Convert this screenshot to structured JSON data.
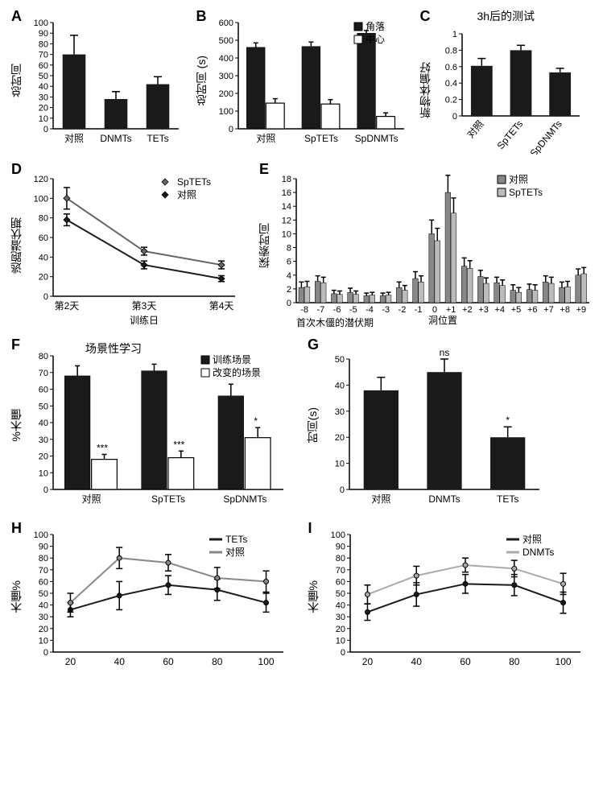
{
  "panelA": {
    "label": "A",
    "ylabel": "总时间",
    "type": "bar",
    "categories": [
      "对照",
      "DNMTs",
      "TETs"
    ],
    "values": [
      70,
      28,
      42
    ],
    "errors": [
      18,
      7,
      7
    ],
    "ylim": [
      0,
      100
    ],
    "yticks": [
      0,
      10,
      20,
      30,
      40,
      50,
      60,
      70,
      80,
      90,
      100
    ],
    "bar_color": "#1a1a1a",
    "bg": "#ffffff"
  },
  "panelB": {
    "label": "B",
    "ylabel": "总时间 (s)",
    "type": "grouped-bar",
    "categories": [
      "对照",
      "SpTETs",
      "SpDNMTs"
    ],
    "legend": [
      {
        "label": "角落",
        "fill": "#1a1a1a"
      },
      {
        "label": "中心",
        "fill": "#ffffff"
      }
    ],
    "series": [
      {
        "name": "角落",
        "values": [
          460,
          465,
          540
        ],
        "errors": [
          25,
          25,
          15
        ],
        "fill": "#1a1a1a"
      },
      {
        "name": "中心",
        "values": [
          145,
          140,
          70
        ],
        "errors": [
          25,
          25,
          20
        ],
        "fill": "#ffffff"
      }
    ],
    "ylim": [
      0,
      600
    ],
    "yticks": [
      0,
      100,
      200,
      300,
      400,
      500,
      600
    ],
    "bg": "#ffffff"
  },
  "panelC": {
    "label": "C",
    "title": "3h后的测试",
    "ylabel": "新物体偏好",
    "type": "bar",
    "categories": [
      "对照",
      "SpTETs",
      "SpDNMTs"
    ],
    "values": [
      0.61,
      0.8,
      0.53
    ],
    "errors": [
      0.09,
      0.06,
      0.05
    ],
    "ylim": [
      0,
      1.0
    ],
    "yticks": [
      0,
      0.2,
      0.4,
      0.6,
      0.8,
      1.0
    ],
    "bar_color": "#1a1a1a",
    "bg": "#ffffff"
  },
  "panelD": {
    "label": "D",
    "ylabel": "逃跑潜伏期",
    "xlabel": "训练日",
    "type": "line",
    "categories": [
      "第2天",
      "第3天",
      "第4天"
    ],
    "legend": [
      {
        "label": "SpTETs",
        "marker": "diamond",
        "color": "#666666"
      },
      {
        "label": "对照",
        "marker": "diamond",
        "color": "#1a1a1a"
      }
    ],
    "series": [
      {
        "name": "SpTETs",
        "values": [
          100,
          46,
          32
        ],
        "errors": [
          11,
          4,
          4
        ],
        "color": "#666666"
      },
      {
        "name": "对照",
        "values": [
          78,
          32,
          18
        ],
        "errors": [
          6,
          4,
          3
        ],
        "color": "#1a1a1a"
      }
    ],
    "ylim": [
      0,
      120
    ],
    "yticks": [
      0,
      20,
      40,
      60,
      80,
      100,
      120
    ],
    "bg": "#ffffff"
  },
  "panelE": {
    "label": "E",
    "ylabel": "探索时间",
    "xlabel": "洞位置",
    "legend_title": "首次木僵的潜伏期",
    "type": "grouped-bar",
    "categories": [
      "-8",
      "-7",
      "-6",
      "-5",
      "-4",
      "-3",
      "-2",
      "-1",
      "0",
      "+1",
      "+2",
      "+3",
      "+4",
      "+5",
      "+6",
      "+7",
      "+8",
      "+9"
    ],
    "legend": [
      {
        "label": "对照",
        "fill": "#888888"
      },
      {
        "label": "SpTETs",
        "fill": "#bbbbbb"
      }
    ],
    "series": [
      {
        "name": "对照",
        "values": [
          2.2,
          3.1,
          1.3,
          1.5,
          1.0,
          1.0,
          2.2,
          3.5,
          10.0,
          16.0,
          5.3,
          3.8,
          2.9,
          1.8,
          1.9,
          3.0,
          2.2,
          4.0
        ],
        "errors": [
          0.8,
          0.8,
          0.5,
          0.6,
          0.4,
          0.4,
          0.8,
          1.0,
          2.0,
          2.5,
          1.2,
          0.9,
          0.8,
          0.8,
          0.8,
          0.9,
          0.8,
          0.9
        ],
        "fill": "#888888"
      },
      {
        "name": "SpTETs",
        "values": [
          2.3,
          2.9,
          1.2,
          1.2,
          1.1,
          1.1,
          1.8,
          3.0,
          9.0,
          13.0,
          5.0,
          2.8,
          2.5,
          1.5,
          1.8,
          2.8,
          2.3,
          4.2
        ],
        "errors": [
          0.8,
          0.8,
          0.5,
          0.5,
          0.4,
          0.4,
          0.7,
          0.9,
          1.8,
          2.2,
          1.1,
          0.8,
          0.8,
          0.7,
          0.8,
          0.9,
          0.8,
          0.9
        ],
        "fill": "#bbbbbb"
      }
    ],
    "ylim": [
      0,
      18
    ],
    "yticks": [
      0,
      2,
      4,
      6,
      8,
      10,
      12,
      14,
      16,
      18
    ],
    "bg": "#ffffff"
  },
  "panelF": {
    "label": "F",
    "title": "场景性学习",
    "ylabel": "%木僵",
    "type": "grouped-bar",
    "categories": [
      "对照",
      "SpTETs",
      "SpDNMTs"
    ],
    "legend": [
      {
        "label": "训练场景",
        "fill": "#1a1a1a"
      },
      {
        "label": "改变的场景",
        "fill": "#ffffff"
      }
    ],
    "series": [
      {
        "name": "训练",
        "values": [
          68,
          71,
          56
        ],
        "errors": [
          6,
          4,
          7
        ],
        "fill": "#1a1a1a"
      },
      {
        "name": "改变",
        "values": [
          18,
          19,
          31
        ],
        "errors": [
          3,
          4,
          6
        ],
        "fill": "#ffffff"
      }
    ],
    "sig_labels": [
      "***",
      "***",
      "*"
    ],
    "ylim": [
      0,
      80
    ],
    "yticks": [
      0,
      10,
      20,
      30,
      40,
      50,
      60,
      70,
      80
    ],
    "bg": "#ffffff"
  },
  "panelG": {
    "label": "G",
    "ylabel": "时间(s)",
    "type": "bar",
    "categories": [
      "对照",
      "DNMTs",
      "TETs"
    ],
    "values": [
      38,
      45,
      20
    ],
    "errors": [
      5,
      5,
      4
    ],
    "sig": [
      "",
      "ns",
      "*"
    ],
    "ylim": [
      0,
      50
    ],
    "yticks": [
      0,
      10,
      20,
      30,
      40,
      50
    ],
    "bar_color": "#1a1a1a",
    "bg": "#ffffff"
  },
  "panelH": {
    "label": "H",
    "ylabel": "木僵%",
    "type": "line",
    "categories": [
      "20",
      "40",
      "60",
      "80",
      "100"
    ],
    "legend": [
      {
        "label": "TETs",
        "color": "#1a1a1a"
      },
      {
        "label": "对照",
        "color": "#888888"
      }
    ],
    "series": [
      {
        "name": "TETs",
        "values": [
          36,
          48,
          57,
          53,
          42
        ],
        "errors": [
          6,
          12,
          8,
          9,
          8
        ],
        "color": "#1a1a1a"
      },
      {
        "name": "对照",
        "values": [
          42,
          80,
          76,
          63,
          60
        ],
        "errors": [
          8,
          9,
          7,
          9,
          9
        ],
        "color": "#888888"
      }
    ],
    "ylim": [
      0,
      100
    ],
    "yticks": [
      0,
      10,
      20,
      30,
      40,
      50,
      60,
      70,
      80,
      90,
      100
    ],
    "bg": "#ffffff"
  },
  "panelI": {
    "label": "I",
    "ylabel": "木僵%",
    "type": "line",
    "categories": [
      "20",
      "40",
      "60",
      "80",
      "100"
    ],
    "legend": [
      {
        "label": "对照",
        "color": "#1a1a1a"
      },
      {
        "label": "DNMTs",
        "color": "#aaaaaa"
      }
    ],
    "series": [
      {
        "name": "对照",
        "values": [
          34,
          49,
          58,
          57,
          42
        ],
        "errors": [
          7,
          10,
          8,
          9,
          9
        ],
        "color": "#1a1a1a"
      },
      {
        "name": "DNMTs",
        "values": [
          49,
          65,
          74,
          71,
          58
        ],
        "errors": [
          8,
          8,
          6,
          7,
          9
        ],
        "color": "#aaaaaa"
      }
    ],
    "ylim": [
      0,
      100
    ],
    "yticks": [
      0,
      10,
      20,
      30,
      40,
      50,
      60,
      70,
      80,
      90,
      100
    ],
    "bg": "#ffffff"
  },
  "colors": {
    "axis": "#000000",
    "bg": "#ffffff"
  }
}
